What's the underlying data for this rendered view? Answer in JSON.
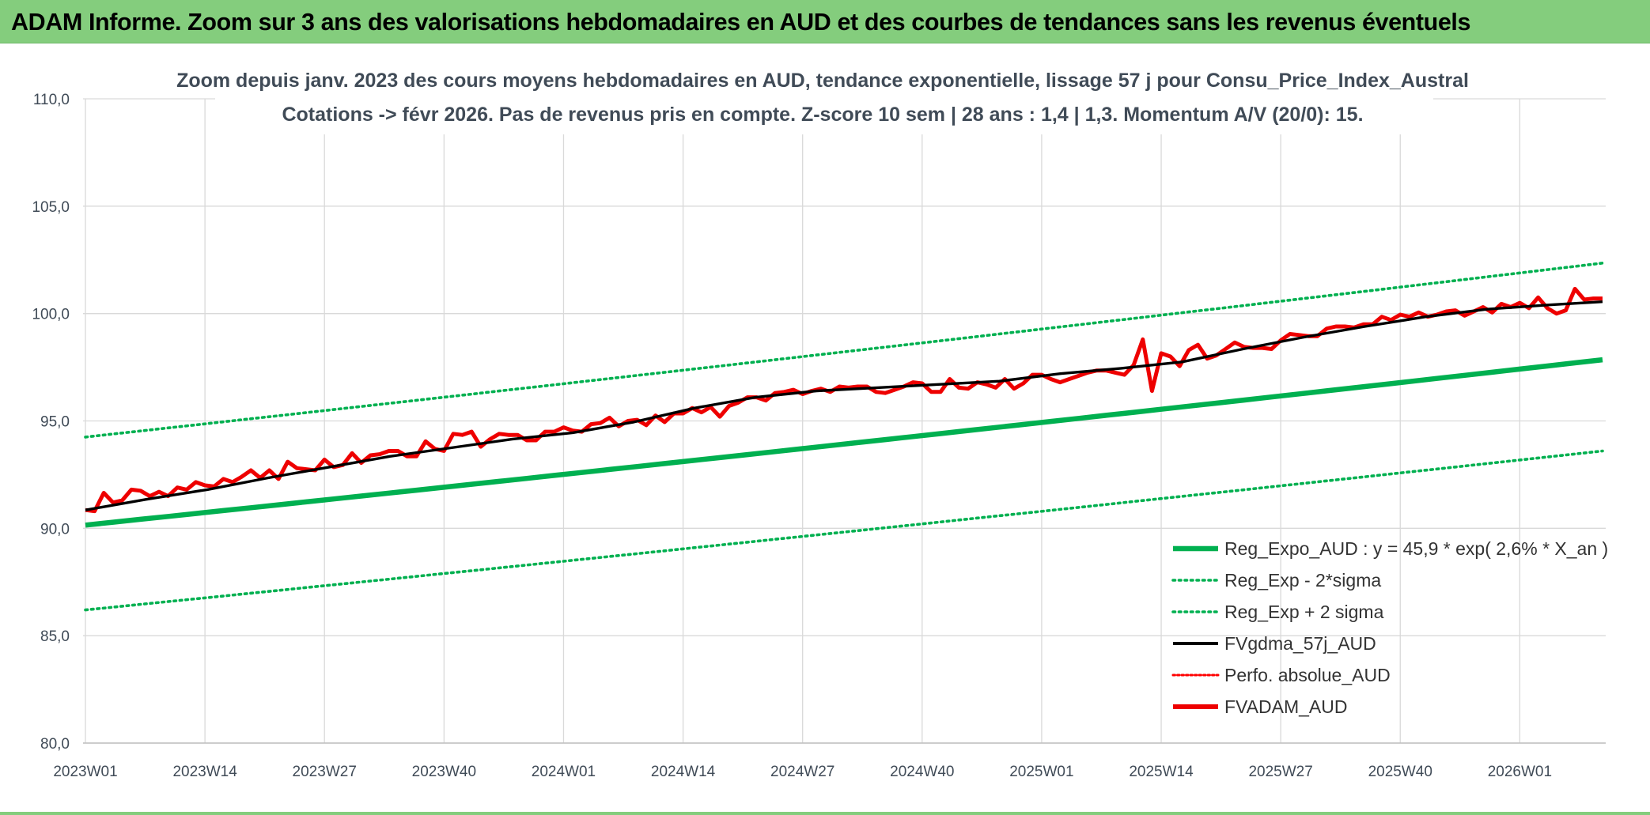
{
  "header": {
    "title": "ADAM Informe. Zoom sur 3 ans des valorisations hebdomadaires en AUD et des courbes de tendances sans les revenus éventuels"
  },
  "colors": {
    "header_bg": "#84cd7d",
    "reg_expo": "#00b050",
    "sigma": "#00b050",
    "gdma": "#000000",
    "perfo": "#ff0000",
    "fvadam": "#ee0000",
    "grid": "#d9d9d9"
  },
  "chart_data": {
    "type": "line",
    "title_line1": "Zoom depuis janv. 2023 des cours moyens hebdomadaires en AUD, tendance exponentielle, lissage 57 j pour Consu_Price_Index_Austral",
    "title_line2": "Cotations -> févr 2026. Pas de revenus pris en compte. Z-score 10 sem | 28 ans : 1,4 | 1,3. Momentum A/V (20/0): 15.",
    "ylim": [
      80,
      110
    ],
    "ytick_values": [
      80,
      85,
      90,
      95,
      100,
      105,
      110
    ],
    "ytick_labels": [
      "80,0",
      "85,0",
      "90,0",
      "95,0",
      "100,0",
      "105,0",
      "110,0"
    ],
    "x_tick_labels": [
      "2023W01",
      "2023W14",
      "2023W27",
      "2023W40",
      "2024W01",
      "2024W14",
      "2024W27",
      "2024W40",
      "2025W01",
      "2025W14",
      "2025W27",
      "2025W40",
      "2026W01"
    ],
    "x_tick_spacing_weeks": 13,
    "n_weeks": 166,
    "grid": true,
    "legend_position": "bottom-right",
    "series": [
      {
        "name": "Reg_Expo_AUD : y = 45,9 * exp( 2,6% *  X_an )",
        "style": "solid-thick",
        "color": "#00b050",
        "start": 90.15,
        "end": 97.85
      },
      {
        "name": "Reg_Exp - 2*sigma",
        "style": "dotted",
        "color": "#00b050",
        "start": 86.2,
        "end": 93.6
      },
      {
        "name": "Reg_Exp + 2 sigma",
        "style": "dotted",
        "color": "#00b050",
        "start": 94.25,
        "end": 102.35
      },
      {
        "name": "FVgdma_57j_AUD",
        "style": "solid",
        "color": "#000000",
        "points": [
          [
            0,
            90.85
          ],
          [
            10,
            91.35
          ],
          [
            20,
            91.8
          ],
          [
            30,
            92.35
          ],
          [
            40,
            92.85
          ],
          [
            50,
            93.35
          ],
          [
            60,
            93.75
          ],
          [
            70,
            94.15
          ],
          [
            80,
            94.45
          ],
          [
            90,
            94.95
          ],
          [
            100,
            95.6
          ],
          [
            110,
            96.1
          ],
          [
            120,
            96.4
          ],
          [
            130,
            96.55
          ],
          [
            140,
            96.7
          ],
          [
            150,
            96.85
          ],
          [
            160,
            97.2
          ],
          [
            170,
            97.45
          ],
          [
            180,
            97.75
          ],
          [
            190,
            98.35
          ],
          [
            200,
            98.9
          ],
          [
            210,
            99.4
          ],
          [
            220,
            99.85
          ],
          [
            230,
            100.2
          ],
          [
            240,
            100.4
          ],
          [
            249,
            100.55
          ]
        ]
      },
      {
        "name": "Perfo. absolue_AUD",
        "style": "dotted",
        "color": "#ff0000"
      },
      {
        "name": "FVADAM_AUD",
        "style": "solid-thick",
        "color": "#ee0000",
        "values": [
          90.85,
          90.8,
          91.65,
          91.2,
          91.3,
          91.8,
          91.75,
          91.5,
          91.7,
          91.5,
          91.9,
          91.8,
          92.15,
          92.0,
          91.95,
          92.3,
          92.15,
          92.4,
          92.7,
          92.35,
          92.7,
          92.3,
          93.1,
          92.8,
          92.75,
          92.7,
          93.2,
          92.85,
          92.95,
          93.5,
          93.05,
          93.4,
          93.45,
          93.6,
          93.6,
          93.35,
          93.35,
          94.05,
          93.7,
          93.6,
          94.4,
          94.35,
          94.5,
          93.8,
          94.15,
          94.4,
          94.35,
          94.35,
          94.1,
          94.1,
          94.5,
          94.5,
          94.7,
          94.55,
          94.5,
          94.85,
          94.9,
          95.15,
          94.75,
          95.0,
          95.05,
          94.8,
          95.25,
          94.95,
          95.35,
          95.35,
          95.6,
          95.4,
          95.65,
          95.2,
          95.7,
          95.85,
          96.1,
          96.1,
          95.95,
          96.3,
          96.35,
          96.45,
          96.25,
          96.4,
          96.5,
          96.35,
          96.6,
          96.55,
          96.6,
          96.6,
          96.35,
          96.3,
          96.45,
          96.6,
          96.8,
          96.75,
          96.35,
          96.35,
          96.95,
          96.55,
          96.5,
          96.8,
          96.7,
          96.55,
          96.95,
          96.5,
          96.75,
          97.15,
          97.15,
          96.95,
          96.8,
          96.95,
          97.1,
          97.25,
          97.35,
          97.35,
          97.25,
          97.15,
          97.6,
          98.8,
          96.4,
          98.15,
          98.0,
          97.55,
          98.3,
          98.55,
          97.9,
          98.05,
          98.35,
          98.65,
          98.45,
          98.4,
          98.4,
          98.35,
          98.75,
          99.05,
          99.0,
          98.95,
          98.95,
          99.3,
          99.4,
          99.4,
          99.35,
          99.5,
          99.5,
          99.85,
          99.7,
          99.95,
          99.85,
          100.05,
          99.85,
          99.95,
          100.1,
          100.15,
          99.9,
          100.1,
          100.3,
          100.05,
          100.45,
          100.3,
          100.5,
          100.25,
          100.75,
          100.25,
          100.0,
          100.15,
          101.15,
          100.65,
          100.7,
          100.7
        ]
      }
    ]
  }
}
